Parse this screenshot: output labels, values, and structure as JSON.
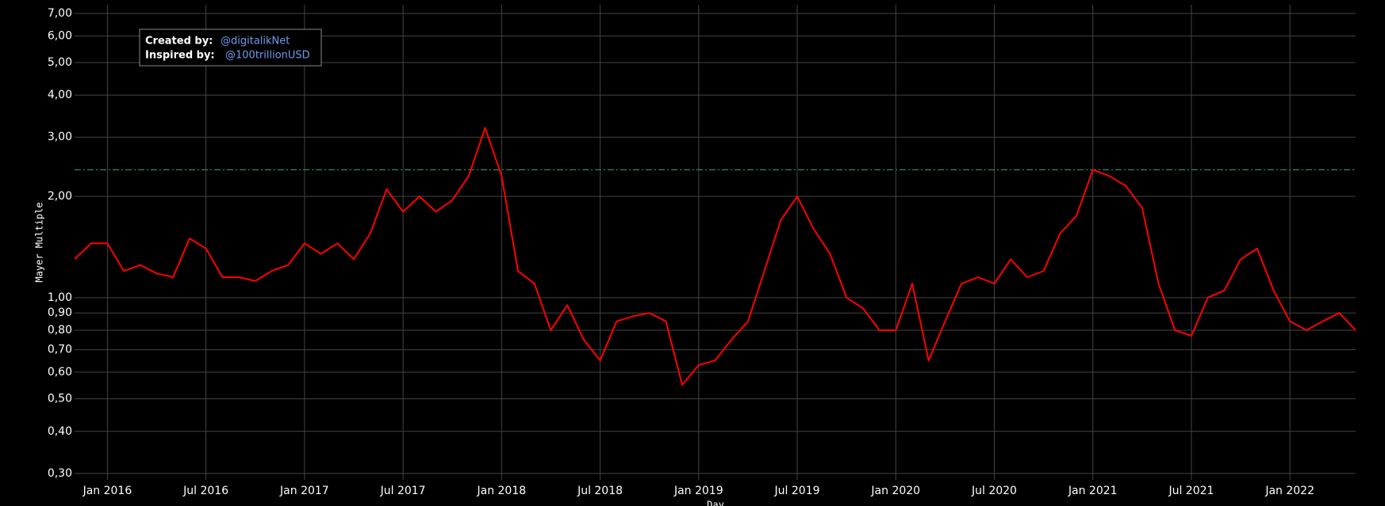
{
  "chart_data": {
    "type": "line",
    "y_label": "Mayer Multiple",
    "x_label": "Day",
    "log_y": true,
    "grid": true,
    "annotation": {
      "created_label": "Created by:",
      "created_value": "@digitalikNet",
      "inspired_label": "Inspired by:",
      "inspired_value": "@100trillionUSD"
    },
    "reference_line": {
      "value": 2.4,
      "color": "#2e8b57"
    },
    "xlim": [
      "2015-11",
      "2022-05"
    ],
    "xticks": [
      {
        "value": "2016-01",
        "label": "Jan 2016"
      },
      {
        "value": "2016-07",
        "label": "Jul 2016"
      },
      {
        "value": "2017-01",
        "label": "Jan 2017"
      },
      {
        "value": "2017-07",
        "label": "Jul 2017"
      },
      {
        "value": "2018-01",
        "label": "Jan 2018"
      },
      {
        "value": "2018-07",
        "label": "Jul 2018"
      },
      {
        "value": "2019-01",
        "label": "Jan 2019"
      },
      {
        "value": "2019-07",
        "label": "Jul 2019"
      },
      {
        "value": "2020-01",
        "label": "Jan 2020"
      },
      {
        "value": "2020-07",
        "label": "Jul 2020"
      },
      {
        "value": "2021-01",
        "label": "Jan 2021"
      },
      {
        "value": "2021-07",
        "label": "Jul 2021"
      },
      {
        "value": "2022-01",
        "label": "Jan 2022"
      }
    ],
    "ylim": [
      0.287,
      7.43
    ],
    "yticks": [
      {
        "value": 0.3,
        "label": "0,30"
      },
      {
        "value": 0.4,
        "label": "0,40"
      },
      {
        "value": 0.5,
        "label": "0,50"
      },
      {
        "value": 0.6,
        "label": "0,60"
      },
      {
        "value": 0.7,
        "label": "0,70"
      },
      {
        "value": 0.8,
        "label": "0,80"
      },
      {
        "value": 0.9,
        "label": "0,90"
      },
      {
        "value": 1,
        "label": "1,00"
      },
      {
        "value": 2,
        "label": "2,00"
      },
      {
        "value": 3,
        "label": "3,00"
      },
      {
        "value": 4,
        "label": "4,00"
      },
      {
        "value": 5,
        "label": "5,00"
      },
      {
        "value": 6,
        "label": "6,00"
      },
      {
        "value": 7,
        "label": "7,00"
      }
    ],
    "x": [
      "2015-11",
      "2015-12",
      "2016-01",
      "2016-02",
      "2016-03",
      "2016-04",
      "2016-05",
      "2016-06",
      "2016-07",
      "2016-08",
      "2016-09",
      "2016-10",
      "2016-11",
      "2016-12",
      "2017-01",
      "2017-02",
      "2017-03",
      "2017-04",
      "2017-05",
      "2017-06",
      "2017-07",
      "2017-08",
      "2017-09",
      "2017-10",
      "2017-11",
      "2017-12",
      "2018-01",
      "2018-02",
      "2018-03",
      "2018-04",
      "2018-05",
      "2018-06",
      "2018-07",
      "2018-08",
      "2018-09",
      "2018-10",
      "2018-11",
      "2018-12",
      "2019-01",
      "2019-02",
      "2019-03",
      "2019-04",
      "2019-05",
      "2019-06",
      "2019-07",
      "2019-08",
      "2019-09",
      "2019-10",
      "2019-11",
      "2019-12",
      "2020-01",
      "2020-02",
      "2020-03",
      "2020-04",
      "2020-05",
      "2020-06",
      "2020-07",
      "2020-08",
      "2020-09",
      "2020-10",
      "2020-11",
      "2020-12",
      "2021-01",
      "2021-02",
      "2021-03",
      "2021-04",
      "2021-05",
      "2021-06",
      "2021-07",
      "2021-08",
      "2021-09",
      "2021-10",
      "2021-11",
      "2021-12",
      "2022-01",
      "2022-02",
      "2022-03",
      "2022-04",
      "2022-05"
    ],
    "series": [
      {
        "name": "Mayer Multiple",
        "color": "#ff0000",
        "values": [
          1.3,
          1.45,
          1.45,
          1.2,
          1.25,
          1.18,
          1.15,
          1.5,
          1.4,
          1.15,
          1.15,
          1.12,
          1.2,
          1.25,
          1.45,
          1.35,
          1.45,
          1.3,
          1.55,
          2.1,
          1.8,
          2.0,
          1.8,
          1.95,
          2.3,
          3.2,
          2.3,
          1.2,
          1.1,
          0.8,
          0.95,
          0.75,
          0.65,
          0.85,
          0.88,
          0.9,
          0.85,
          0.55,
          0.63,
          0.65,
          0.75,
          0.85,
          1.2,
          1.7,
          2.0,
          1.6,
          1.35,
          1.0,
          0.93,
          0.8,
          0.8,
          1.1,
          0.65,
          0.85,
          1.1,
          1.15,
          1.1,
          1.3,
          1.15,
          1.2,
          1.55,
          1.75,
          2.4,
          2.3,
          2.15,
          1.85,
          1.1,
          0.8,
          0.77,
          1.0,
          1.05,
          1.3,
          1.4,
          1.05,
          0.85,
          0.8,
          0.85,
          0.9,
          0.8
        ]
      }
    ]
  }
}
